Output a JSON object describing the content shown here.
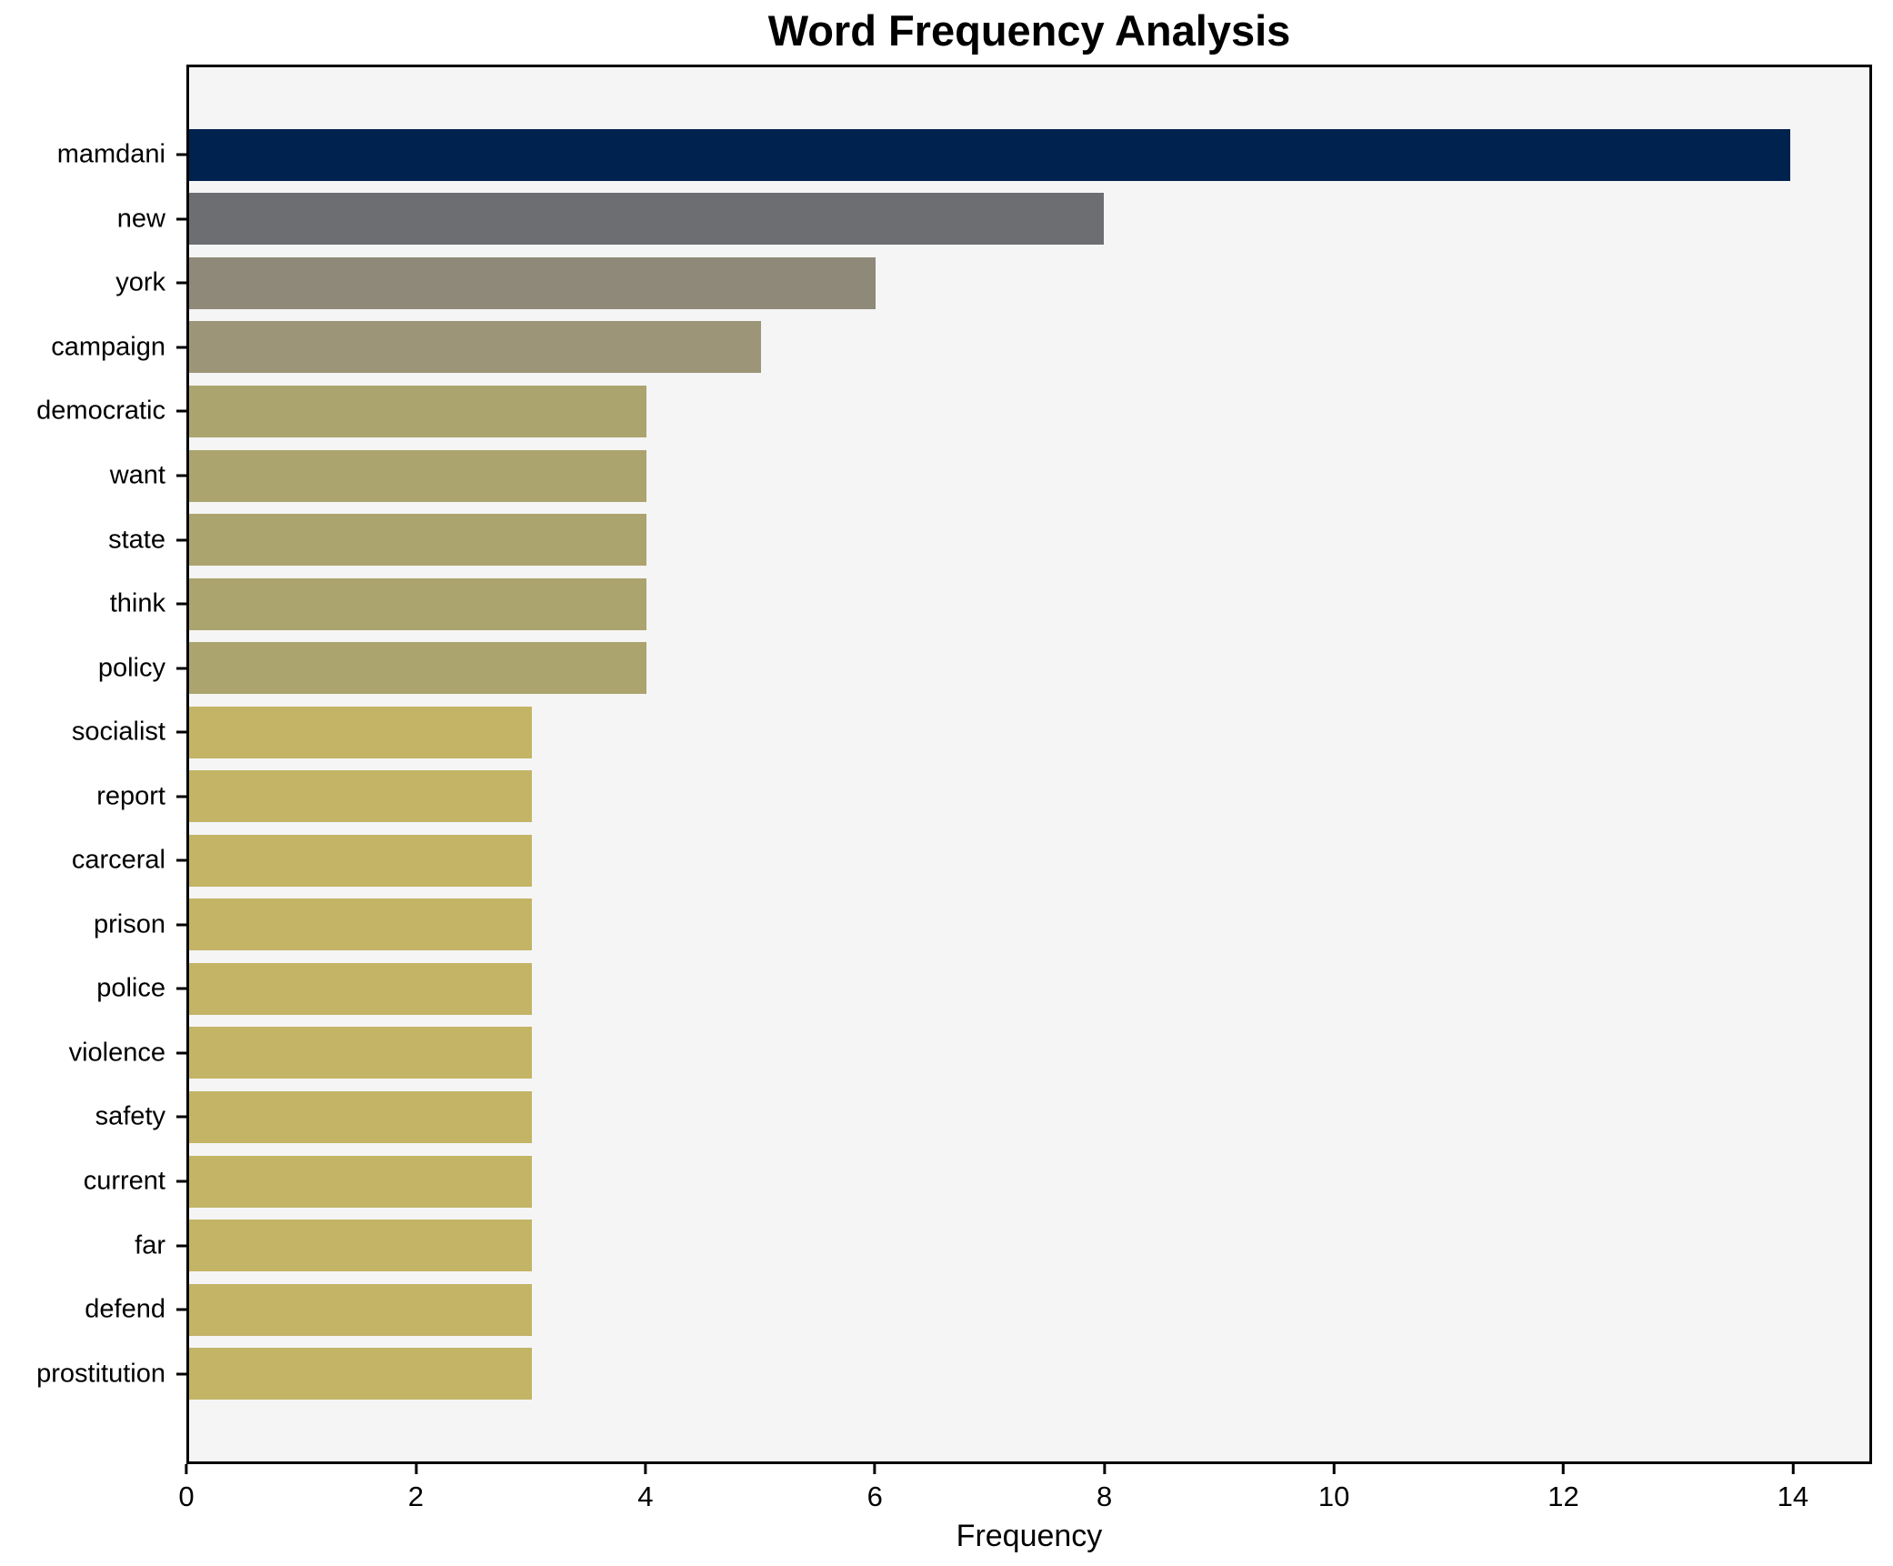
{
  "title": "Word Frequency Analysis",
  "chart_data": {
    "type": "bar",
    "orientation": "horizontal",
    "title": "Word Frequency Analysis",
    "xlabel": "Frequency",
    "ylabel": "",
    "categories": [
      "mamdani",
      "new",
      "york",
      "campaign",
      "democratic",
      "want",
      "state",
      "think",
      "policy",
      "socialist",
      "report",
      "carceral",
      "prison",
      "police",
      "violence",
      "safety",
      "current",
      "far",
      "defend",
      "prostitution"
    ],
    "values": [
      14,
      8,
      6,
      5,
      4,
      4,
      4,
      4,
      4,
      3,
      3,
      3,
      3,
      3,
      3,
      3,
      3,
      3,
      3,
      3
    ],
    "bar_colors": [
      "#00224e",
      "#6c6e72",
      "#8f8979",
      "#9c9577",
      "#aca46e",
      "#aca46e",
      "#aca46e",
      "#aca46e",
      "#aca46e",
      "#c3b466",
      "#c3b466",
      "#c3b466",
      "#c3b466",
      "#c3b466",
      "#c3b466",
      "#c3b466",
      "#c3b466",
      "#c3b466",
      "#c3b466",
      "#c3b466"
    ],
    "xticks": [
      0,
      2,
      4,
      6,
      8,
      10,
      12,
      14
    ],
    "xlim": [
      0,
      14.69
    ],
    "grid": false,
    "legend": false,
    "plot_background": "#f5f5f5",
    "figure_background": "#ffffff",
    "spine_color": "#000000",
    "bar_height_ratio": 0.8
  }
}
